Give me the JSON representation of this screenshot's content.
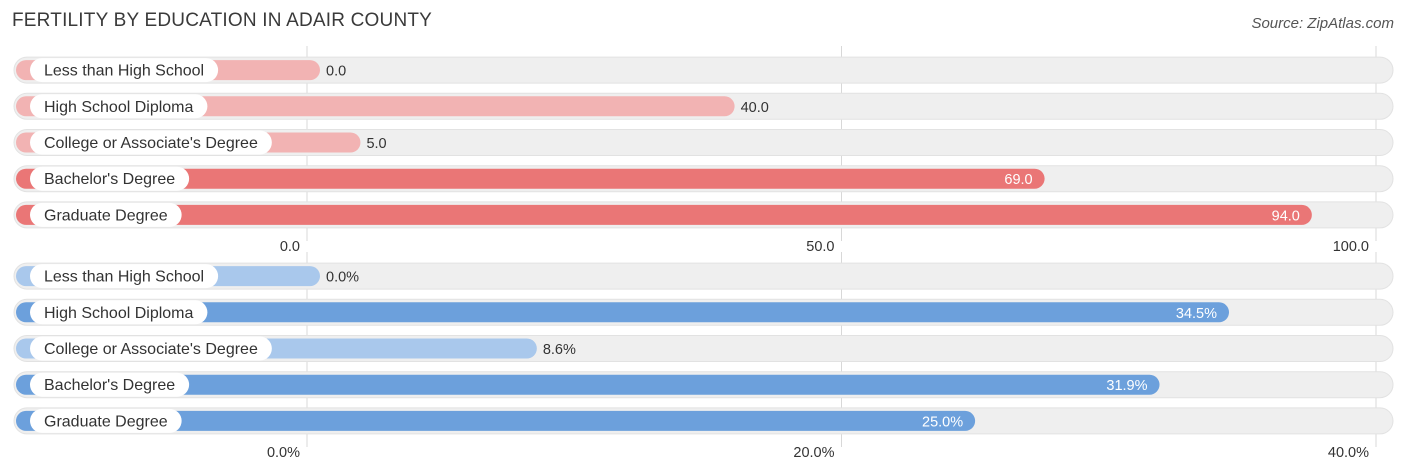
{
  "header": {
    "title": "FERTILITY BY EDUCATION IN ADAIR COUNTY",
    "source": "Source: ZipAtlas.com"
  },
  "colors": {
    "top_light": "#f2b3b3",
    "top_strong": "#ea7676",
    "bottom_light": "#a9c8ec",
    "bottom_strong": "#6ca0dc",
    "track": "#efefef",
    "grid": "#d8d8d8"
  },
  "chart_data": [
    {
      "type": "bar",
      "orientation": "horizontal",
      "categories": [
        "Less than High School",
        "High School Diploma",
        "College or Associate's Degree",
        "Bachelor's Degree",
        "Graduate Degree"
      ],
      "values": [
        0.0,
        40.0,
        5.0,
        69.0,
        94.0
      ],
      "value_labels": [
        "0.0",
        "40.0",
        "5.0",
        "69.0",
        "94.0"
      ],
      "xlim": [
        0,
        100
      ],
      "ticks": [
        0,
        50,
        100
      ],
      "tick_labels": [
        "0.0",
        "50.0",
        "100.0"
      ],
      "grid": true
    },
    {
      "type": "bar",
      "orientation": "horizontal",
      "categories": [
        "Less than High School",
        "High School Diploma",
        "College or Associate's Degree",
        "Bachelor's Degree",
        "Graduate Degree"
      ],
      "values": [
        0.0,
        34.5,
        8.6,
        31.9,
        25.0
      ],
      "value_labels": [
        "0.0%",
        "34.5%",
        "8.6%",
        "31.9%",
        "25.0%"
      ],
      "xlim": [
        0,
        40
      ],
      "ticks": [
        0,
        20,
        40
      ],
      "tick_labels": [
        "0.0%",
        "20.0%",
        "40.0%"
      ],
      "grid": true
    }
  ]
}
